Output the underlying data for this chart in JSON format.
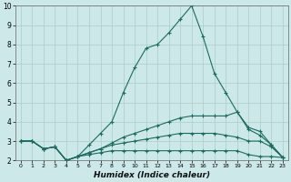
{
  "xlabel": "Humidex (Indice chaleur)",
  "background_color": "#cce8e8",
  "grid_color": "#b0d0d0",
  "line_color": "#1a6b60",
  "xlim": [
    -0.5,
    23.5
  ],
  "ylim": [
    2,
    10
  ],
  "yticks": [
    2,
    3,
    4,
    5,
    6,
    7,
    8,
    9,
    10
  ],
  "xticks": [
    0,
    1,
    2,
    3,
    4,
    5,
    6,
    7,
    8,
    9,
    10,
    11,
    12,
    13,
    14,
    15,
    16,
    17,
    18,
    19,
    20,
    21,
    22,
    23
  ],
  "lines": [
    {
      "x": [
        0,
        1,
        2,
        3,
        4,
        5,
        6,
        7,
        8,
        9,
        10,
        11,
        12,
        13,
        14,
        15,
        16,
        17,
        18,
        19,
        20,
        21,
        22,
        23
      ],
      "y": [
        3.0,
        3.0,
        2.6,
        2.7,
        2.0,
        2.2,
        2.8,
        3.4,
        4.0,
        5.5,
        6.8,
        7.8,
        8.0,
        8.6,
        9.3,
        10.0,
        8.4,
        6.5,
        5.5,
        4.5,
        3.6,
        3.3,
        2.8,
        2.15
      ]
    },
    {
      "x": [
        0,
        1,
        2,
        3,
        4,
        5,
        6,
        7,
        8,
        9,
        10,
        11,
        12,
        13,
        14,
        15,
        16,
        17,
        18,
        19,
        20,
        21,
        22,
        23
      ],
      "y": [
        3.0,
        3.0,
        2.6,
        2.7,
        2.0,
        2.2,
        2.4,
        2.6,
        2.9,
        3.2,
        3.4,
        3.6,
        3.8,
        4.0,
        4.2,
        4.3,
        4.3,
        4.3,
        4.3,
        4.5,
        3.7,
        3.5,
        2.8,
        2.15
      ]
    },
    {
      "x": [
        0,
        1,
        2,
        3,
        4,
        5,
        6,
        7,
        8,
        9,
        10,
        11,
        12,
        13,
        14,
        15,
        16,
        17,
        18,
        19,
        20,
        21,
        22,
        23
      ],
      "y": [
        3.0,
        3.0,
        2.6,
        2.7,
        2.0,
        2.2,
        2.4,
        2.6,
        2.8,
        2.9,
        3.0,
        3.1,
        3.2,
        3.3,
        3.4,
        3.4,
        3.4,
        3.4,
        3.3,
        3.2,
        3.0,
        3.0,
        2.7,
        2.15
      ]
    },
    {
      "x": [
        0,
        1,
        2,
        3,
        4,
        5,
        6,
        7,
        8,
        9,
        10,
        11,
        12,
        13,
        14,
        15,
        16,
        17,
        18,
        19,
        20,
        21,
        22,
        23
      ],
      "y": [
        3.0,
        3.0,
        2.6,
        2.7,
        2.0,
        2.2,
        2.3,
        2.4,
        2.5,
        2.5,
        2.5,
        2.5,
        2.5,
        2.5,
        2.5,
        2.5,
        2.5,
        2.5,
        2.5,
        2.5,
        2.3,
        2.2,
        2.2,
        2.15
      ]
    }
  ]
}
